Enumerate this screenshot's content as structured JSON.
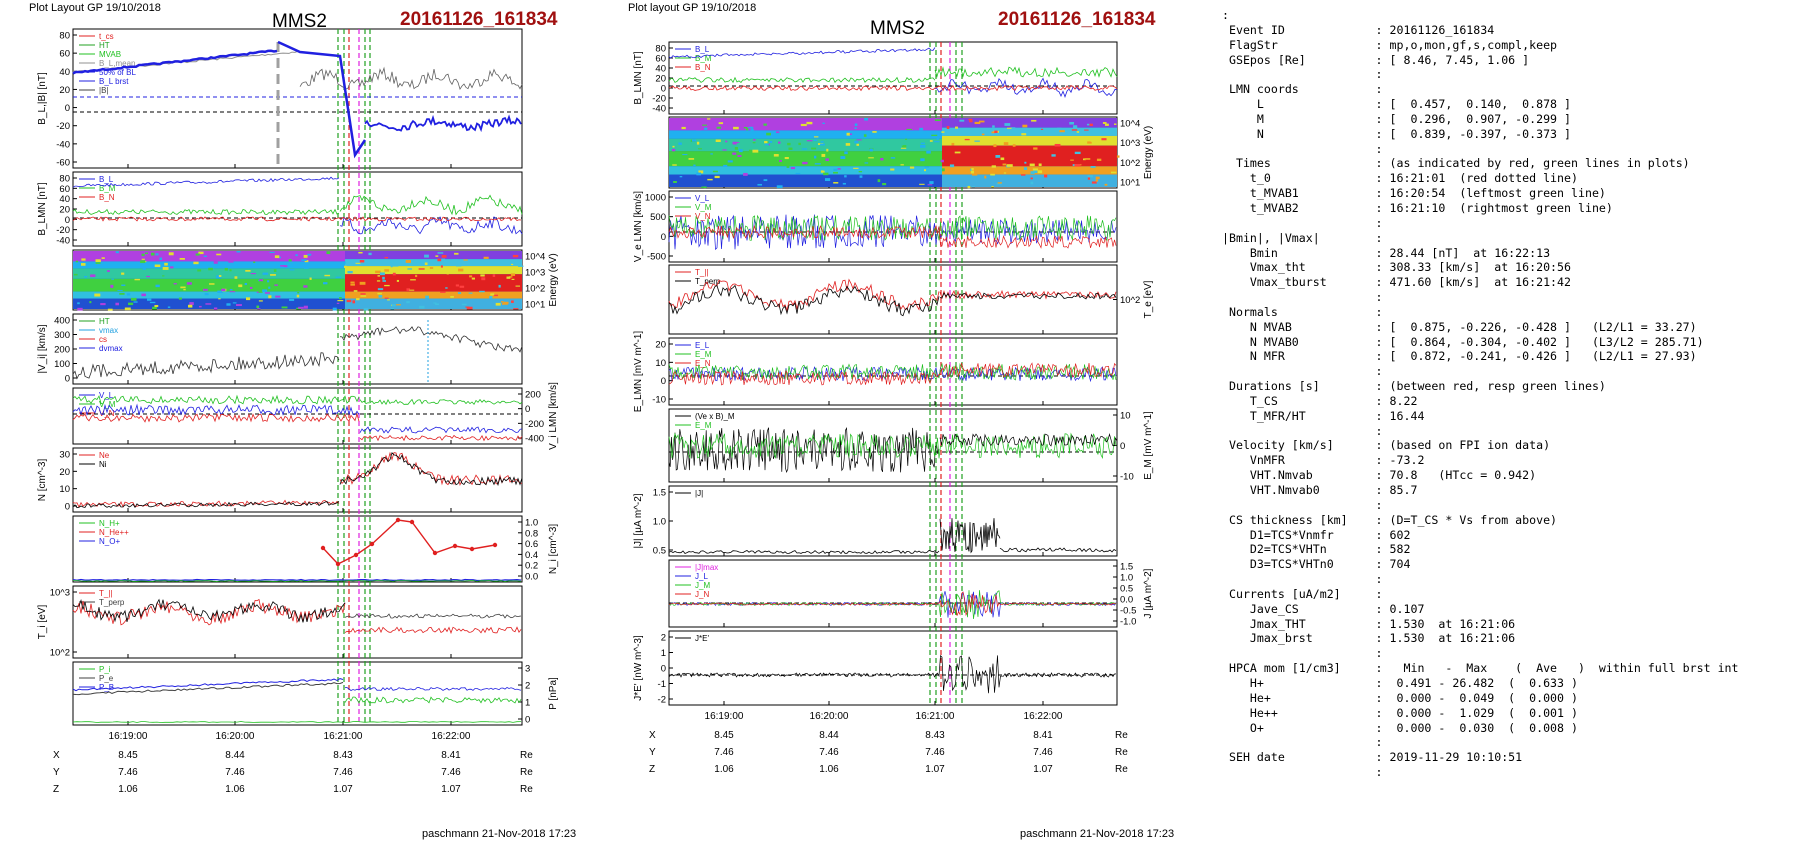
{
  "left": {
    "layout_label": "Plot Layout GP 19/10/2018",
    "sc": "MMS2",
    "event": "20161126_161834",
    "footer": "paschmann 21-Nov-2018 17:23",
    "time_ticks": [
      "16:19:00",
      "16:20:00",
      "16:21:00",
      "16:22:00"
    ],
    "pos_rows": [
      {
        "label": "X",
        "vals": [
          "8.45",
          "8.44",
          "8.43",
          "8.41"
        ],
        "unit": "Re"
      },
      {
        "label": "Y",
        "vals": [
          "7.46",
          "7.46",
          "7.46",
          "7.46"
        ],
        "unit": "Re"
      },
      {
        "label": "Z",
        "vals": [
          "1.06",
          "1.06",
          "1.07",
          "1.07"
        ],
        "unit": "Re"
      }
    ],
    "panels": [
      {
        "ylabel": "B_L,|B| [nT]",
        "ticks_left": [
          "80",
          "60",
          "40",
          "20",
          "0",
          "-20",
          "-40",
          "-60"
        ],
        "ticks_right": [],
        "legend": [
          {
            "t": "t_cs",
            "c": "#e02020"
          },
          {
            "t": "HT",
            "c": "#20a020"
          },
          {
            "t": "MVAB",
            "c": "#20c020"
          },
          {
            "t": "B_L,mean",
            "c": "#909090"
          },
          {
            "t": "50% of BL",
            "c": "#2020e0"
          },
          {
            "t": "B_L brst",
            "c": "#2020e0"
          },
          {
            "t": "|B|",
            "c": "#404040"
          }
        ]
      },
      {
        "ylabel": "B_LMN [nT]",
        "ticks_left": [
          "80",
          "60",
          "40",
          "20",
          "0",
          "-20",
          "-40"
        ],
        "ticks_right": [],
        "legend": [
          {
            "t": "B_L",
            "c": "#2020e0"
          },
          {
            "t": "B_M",
            "c": "#20c020"
          },
          {
            "t": "B_N",
            "c": "#e02020"
          }
        ]
      },
      {
        "ylabel": "",
        "ticks_left": [],
        "ticks_right": [
          "10^4",
          "10^3",
          "10^2",
          "10^1"
        ],
        "right_label": "Energy (eV)",
        "legend": []
      },
      {
        "ylabel": "|V_i| [km/s]",
        "ticks_left": [
          "400",
          "300",
          "200",
          "100",
          "0"
        ],
        "ticks_right": [],
        "legend": [
          {
            "t": "HT",
            "c": "#20a020"
          },
          {
            "t": "vmax",
            "c": "#20a0e0"
          },
          {
            "t": "cs",
            "c": "#e02020"
          },
          {
            "t": "dvmax",
            "c": "#2020e0"
          }
        ]
      },
      {
        "ylabel": "",
        "ticks_left": [],
        "ticks_right": [
          "200",
          "0",
          "-200",
          "-400"
        ],
        "right_label": "V_i LMN [km/s]",
        "legend": [
          {
            "t": "V_L",
            "c": "#2020e0"
          },
          {
            "t": "V_M",
            "c": "#20c020"
          },
          {
            "t": "V_N",
            "c": "#e02020"
          }
        ]
      },
      {
        "ylabel": "N [cm^-3]",
        "ticks_left": [
          "30",
          "20",
          "10",
          "0"
        ],
        "ticks_right": [],
        "legend": [
          {
            "t": "Ne",
            "c": "#e02020"
          },
          {
            "t": "Ni",
            "c": "#000000"
          }
        ]
      },
      {
        "ylabel": "",
        "ticks_left": [],
        "ticks_right": [
          "1.0",
          "0.8",
          "0.6",
          "0.4",
          "0.2",
          "0.0"
        ],
        "right_label": "N_i [cm^-3]",
        "legend": [
          {
            "t": "N_H+",
            "c": "#20c020"
          },
          {
            "t": "N_He++",
            "c": "#e02020"
          },
          {
            "t": "N_O+",
            "c": "#2020e0"
          }
        ]
      },
      {
        "ylabel": "T_i [eV]",
        "ticks_left": [
          "10^3",
          "10^2"
        ],
        "ticks_right": [],
        "legend": [
          {
            "t": "T_||",
            "c": "#e02020"
          },
          {
            "t": "T_perp",
            "c": "#404040"
          }
        ]
      },
      {
        "ylabel": "",
        "ticks_left": [],
        "ticks_right": [
          "3",
          "2",
          "1",
          "0"
        ],
        "right_label": "P [nPa]",
        "legend": [
          {
            "t": "P_i",
            "c": "#20c020"
          },
          {
            "t": "P_e",
            "c": "#404040"
          },
          {
            "t": "P_B",
            "c": "#2020e0"
          }
        ]
      }
    ]
  },
  "middle": {
    "layout_label": "Plot layout GP 19/10/2018",
    "sc": "MMS2",
    "event": "20161126_161834",
    "footer": "paschmann 21-Nov-2018 17:23",
    "time_ticks": [
      "16:19:00",
      "16:20:00",
      "16:21:00",
      "16:22:00"
    ],
    "pos_rows": [
      {
        "label": "X",
        "vals": [
          "8.45",
          "8.44",
          "8.43",
          "8.41"
        ],
        "unit": "Re"
      },
      {
        "label": "Y",
        "vals": [
          "7.46",
          "7.46",
          "7.46",
          "7.46"
        ],
        "unit": "Re"
      },
      {
        "label": "Z",
        "vals": [
          "1.06",
          "1.06",
          "1.07",
          "1.07"
        ],
        "unit": "Re"
      }
    ],
    "panels": [
      {
        "ylabel": "B_LMN [nT]",
        "ticks_left": [
          "80",
          "60",
          "40",
          "20",
          "0",
          "-20",
          "-40"
        ],
        "ticks_right": [],
        "legend": [
          {
            "t": "B_L",
            "c": "#2020e0"
          },
          {
            "t": "B_M",
            "c": "#20c020"
          },
          {
            "t": "B_N",
            "c": "#e02020"
          }
        ]
      },
      {
        "ylabel": "",
        "ticks_left": [],
        "ticks_right": [
          "10^4",
          "10^3",
          "10^2",
          "10^1"
        ],
        "right_label": "Energy (eV)",
        "legend": []
      },
      {
        "ylabel": "V_e LMN [km/s]",
        "ticks_left": [
          "1000",
          "500",
          "0",
          "-500"
        ],
        "ticks_right": [],
        "legend": [
          {
            "t": "V_L",
            "c": "#2020e0"
          },
          {
            "t": "V_M",
            "c": "#20c020"
          },
          {
            "t": "V_N",
            "c": "#e02020"
          }
        ]
      },
      {
        "ylabel": "",
        "ticks_left": [],
        "ticks_right": [
          "10^2"
        ],
        "right_label": "T_e [eV]",
        "legend": [
          {
            "t": "T_||",
            "c": "#e02020"
          },
          {
            "t": "T_perp",
            "c": "#000000"
          }
        ]
      },
      {
        "ylabel": "E_LMN [mV m^-1]",
        "ticks_left": [
          "20",
          "10",
          "0",
          "-10"
        ],
        "ticks_right": [],
        "legend": [
          {
            "t": "E_L",
            "c": "#2020e0"
          },
          {
            "t": "E_M",
            "c": "#20c020"
          },
          {
            "t": "E_N",
            "c": "#e02020"
          }
        ]
      },
      {
        "ylabel": "",
        "ticks_left": [],
        "ticks_right": [
          "10",
          "0",
          "-10"
        ],
        "right_label": "E_M [mV m^-1]",
        "legend": [
          {
            "t": "(Ve x B)_M",
            "c": "#000000"
          },
          {
            "t": "E_M",
            "c": "#20c020"
          }
        ]
      },
      {
        "ylabel": "|J| [µA m^-2]",
        "ticks_left": [
          "1.5",
          "1.0",
          "0.5"
        ],
        "ticks_right": [],
        "legend": [
          {
            "t": "|J|",
            "c": "#000000"
          }
        ]
      },
      {
        "ylabel": "",
        "ticks_left": [],
        "ticks_right": [
          "1.5",
          "1.0",
          "0.5",
          "0.0",
          "-0.5",
          "-1.0"
        ],
        "right_label": "J [µA m^-2]",
        "legend": [
          {
            "t": "|J|max",
            "c": "#e020e0"
          },
          {
            "t": "J_L",
            "c": "#2020e0"
          },
          {
            "t": "J_M",
            "c": "#20c020"
          },
          {
            "t": "J_N",
            "c": "#e02020"
          }
        ]
      },
      {
        "ylabel": "J*E' [nW m^-3]",
        "ticks_left": [
          "2",
          "1",
          "0",
          "-1",
          "-2"
        ],
        "ticks_right": [],
        "legend": [
          {
            "t": "J*E'",
            "c": "#000000"
          }
        ]
      }
    ]
  },
  "info_lines": [
    ":",
    " Event ID             : 20161126_161834",
    " FlagStr              : mp,o,mon,gf,s,compl,keep",
    " GSEpos [Re]          : [ 8.46, 7.45, 1.06 ]",
    "                      :",
    " LMN coords           :",
    "     L                : [  0.457,  0.140,  0.878 ]",
    "     M                : [  0.296,  0.907, -0.299 ]",
    "     N                : [  0.839, -0.397, -0.373 ]",
    "                      :",
    "  Times               : (as indicated by red, green lines in plots)",
    "    t_0               : 16:21:01  (red dotted line)",
    "    t_MVAB1           : 16:20:54  (leftmost green line)",
    "    t_MVAB2           : 16:21:10  (rightmost green line)",
    "                      :",
    "|Bmin|, |Vmax|        :",
    "    Bmin              : 28.44 [nT]  at 16:22:13",
    "    Vmax_tht          : 308.33 [km/s]  at 16:20:56",
    "    Vmax_tburst       : 471.60 [km/s]  at 16:21:42",
    "                      :",
    " Normals              :",
    "    N MVAB            : [  0.875, -0.226, -0.428 ]   (L2/L1 = 33.27)",
    "    N MVAB0           : [  0.864, -0.304, -0.402 ]   (L3/L2 = 285.71)",
    "    N MFR             : [  0.872, -0.241, -0.426 ]   (L2/L1 = 27.93)",
    "                      :",
    " Durations [s]        : (between red, resp green lines)",
    "    T_CS              : 8.22",
    "    T_MFR/HT          : 16.44",
    "                      :",
    " Velocity [km/s]      : (based on FPI ion data)",
    "    VnMFR             : -73.2",
    "    VHT.Nmvab         : 70.8   (HTcc = 0.942)",
    "    VHT.Nmvab0        : 85.7",
    "                      :",
    " CS thickness [km]    : (D=T_CS * Vs from above)",
    "    D1=TCS*Vnmfr      : 602",
    "    D2=TCS*VHTn       : 582",
    "    D3=TCS*VHTn0      : 704",
    "                      :",
    " Currents [uA/m2]     :",
    "    Jave_CS           : 0.107",
    "    Jmax_THT          : 1.530  at 16:21:06",
    "    Jmax_brst         : 1.530  at 16:21:06",
    "                      :",
    " HPCA mom [1/cm3]     :   Min   -  Max    (  Ave   )  within full brst int",
    "    H+                :  0.491 - 26.482  (  0.633 )",
    "    He+               :  0.000 -  0.049  (  0.000 )",
    "    He++              :  0.000 -  1.029  (  0.001 )",
    "    O+                :  0.000 -  0.030  (  0.008 )",
    "                      :",
    " SEH date             : 2019-11-29 10:10:51",
    "                      :"
  ]
}
